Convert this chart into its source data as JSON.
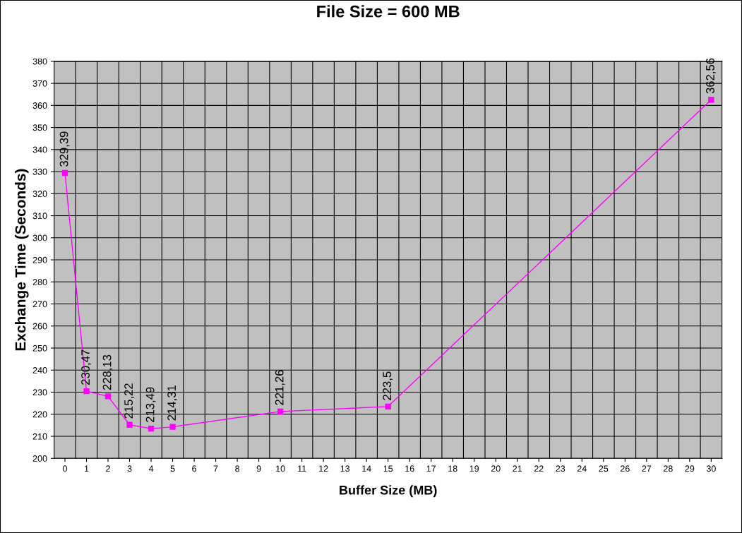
{
  "chart_data": {
    "type": "line",
    "title": "File Size = 600 MB",
    "xlabel": "Buffer Size (MB)",
    "ylabel": "Exchange Time (Seconds)",
    "series": [
      {
        "color": "#ff00ff",
        "x": [
          0,
          1,
          2,
          3,
          4,
          5,
          10,
          15,
          30
        ],
        "values": [
          329.39,
          230.47,
          228.13,
          215.22,
          213.49,
          214.31,
          221.26,
          223.5,
          362.56
        ],
        "value_labels": [
          "329,39",
          "230,47",
          "228,13",
          "215,22",
          "213,49",
          "214,31",
          "221,26",
          "223,5",
          "362,56"
        ]
      }
    ],
    "xlim": [
      -0.5,
      30.5
    ],
    "xticks": [
      0,
      1,
      2,
      3,
      4,
      5,
      6,
      7,
      8,
      9,
      10,
      11,
      12,
      13,
      14,
      15,
      16,
      17,
      18,
      19,
      20,
      21,
      22,
      23,
      24,
      25,
      26,
      27,
      28,
      29,
      30
    ],
    "ylim": [
      200,
      380
    ],
    "yticks": [
      200,
      210,
      220,
      230,
      240,
      250,
      260,
      270,
      280,
      290,
      300,
      310,
      320,
      330,
      340,
      350,
      360,
      370,
      380
    ],
    "grid": true,
    "marker": "square",
    "line_style": "solid",
    "legend": false
  }
}
